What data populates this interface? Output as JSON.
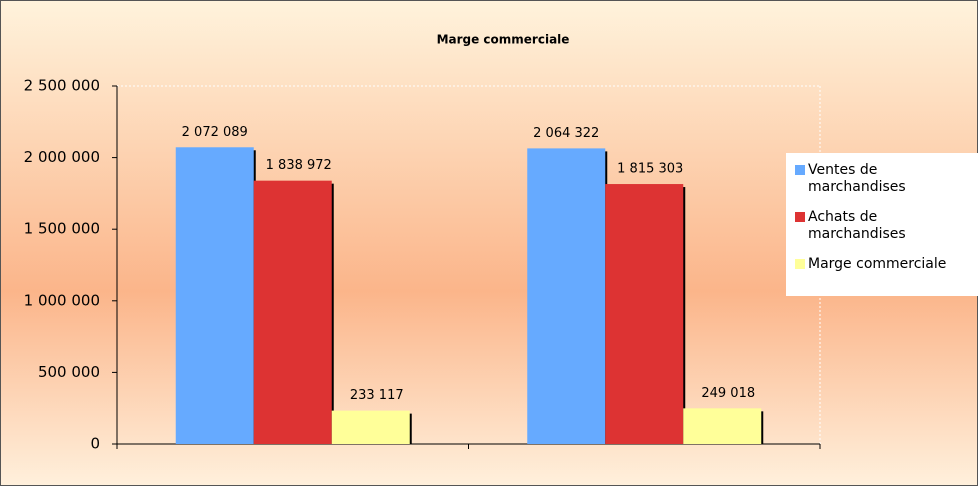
{
  "chart_data": {
    "type": "bar",
    "title": "Marge commerciale",
    "categories": [
      null,
      null
    ],
    "series": [
      {
        "name": "Ventes de marchandises",
        "color": "#66aaff",
        "values": [
          2072089,
          2064322
        ],
        "value_labels": [
          "2 072 089",
          "2 064 322"
        ]
      },
      {
        "name": "Achats de marchandises",
        "color": "#dd3333",
        "values": [
          1838972,
          1815303
        ],
        "value_labels": [
          "1 838 972",
          "1 815 303"
        ]
      },
      {
        "name": "Marge commerciale",
        "color": "#ffff99",
        "values": [
          233117,
          249018
        ],
        "value_labels": [
          "233 117",
          "249 018"
        ]
      }
    ],
    "ylim": [
      0,
      2500000
    ],
    "yticks": [
      0,
      {
        "value": 500000,
        "label": "500 000"
      },
      {
        "value": 1000000,
        "label": "1 000 000"
      },
      {
        "value": 1500000,
        "label": "1 500 000"
      },
      {
        "value": 2000000,
        "label": "2 000 000"
      },
      {
        "value": 2500000,
        "label": "2 500 000"
      }
    ],
    "legend": "right"
  }
}
